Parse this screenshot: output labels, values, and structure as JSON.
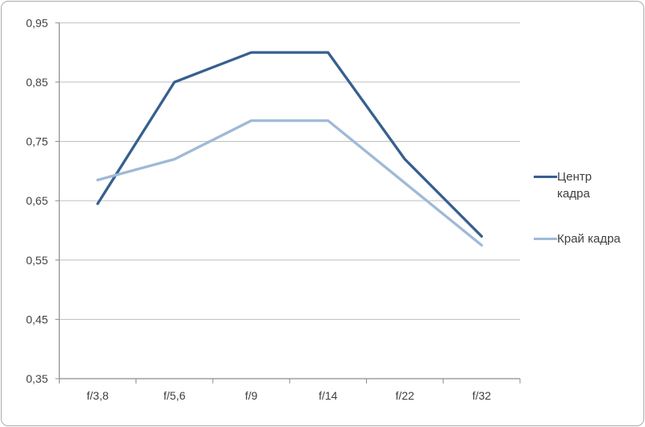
{
  "chart_data": {
    "type": "line",
    "title": "",
    "xlabel": "",
    "ylabel": "",
    "categories": [
      "f/3,8",
      "f/5,6",
      "f/9",
      "f/14",
      "f/22",
      "f/32"
    ],
    "series": [
      {
        "name": "Центр кадра",
        "color": "#36608F",
        "values": [
          0.645,
          0.85,
          0.9,
          0.9,
          0.72,
          0.59
        ]
      },
      {
        "name": "Край кадра",
        "color": "#9FB9D8",
        "values": [
          0.685,
          0.72,
          0.785,
          0.785,
          0.68,
          0.575
        ]
      }
    ],
    "ylim": [
      0.35,
      0.95
    ],
    "ytick_step": 0.1,
    "ytick_labels": [
      "0,35",
      "0,45",
      "0,55",
      "0,65",
      "0,75",
      "0,85",
      "0,95"
    ],
    "grid": true,
    "legend_position": "right",
    "markers": false
  },
  "style_colors": {
    "background": "#FFFFFF",
    "chart_border": "#ACACAC",
    "gridline": "#BFBFBF",
    "axis": "#8C8C8C",
    "tick_text": "#404040",
    "legend_text": "#404040"
  }
}
